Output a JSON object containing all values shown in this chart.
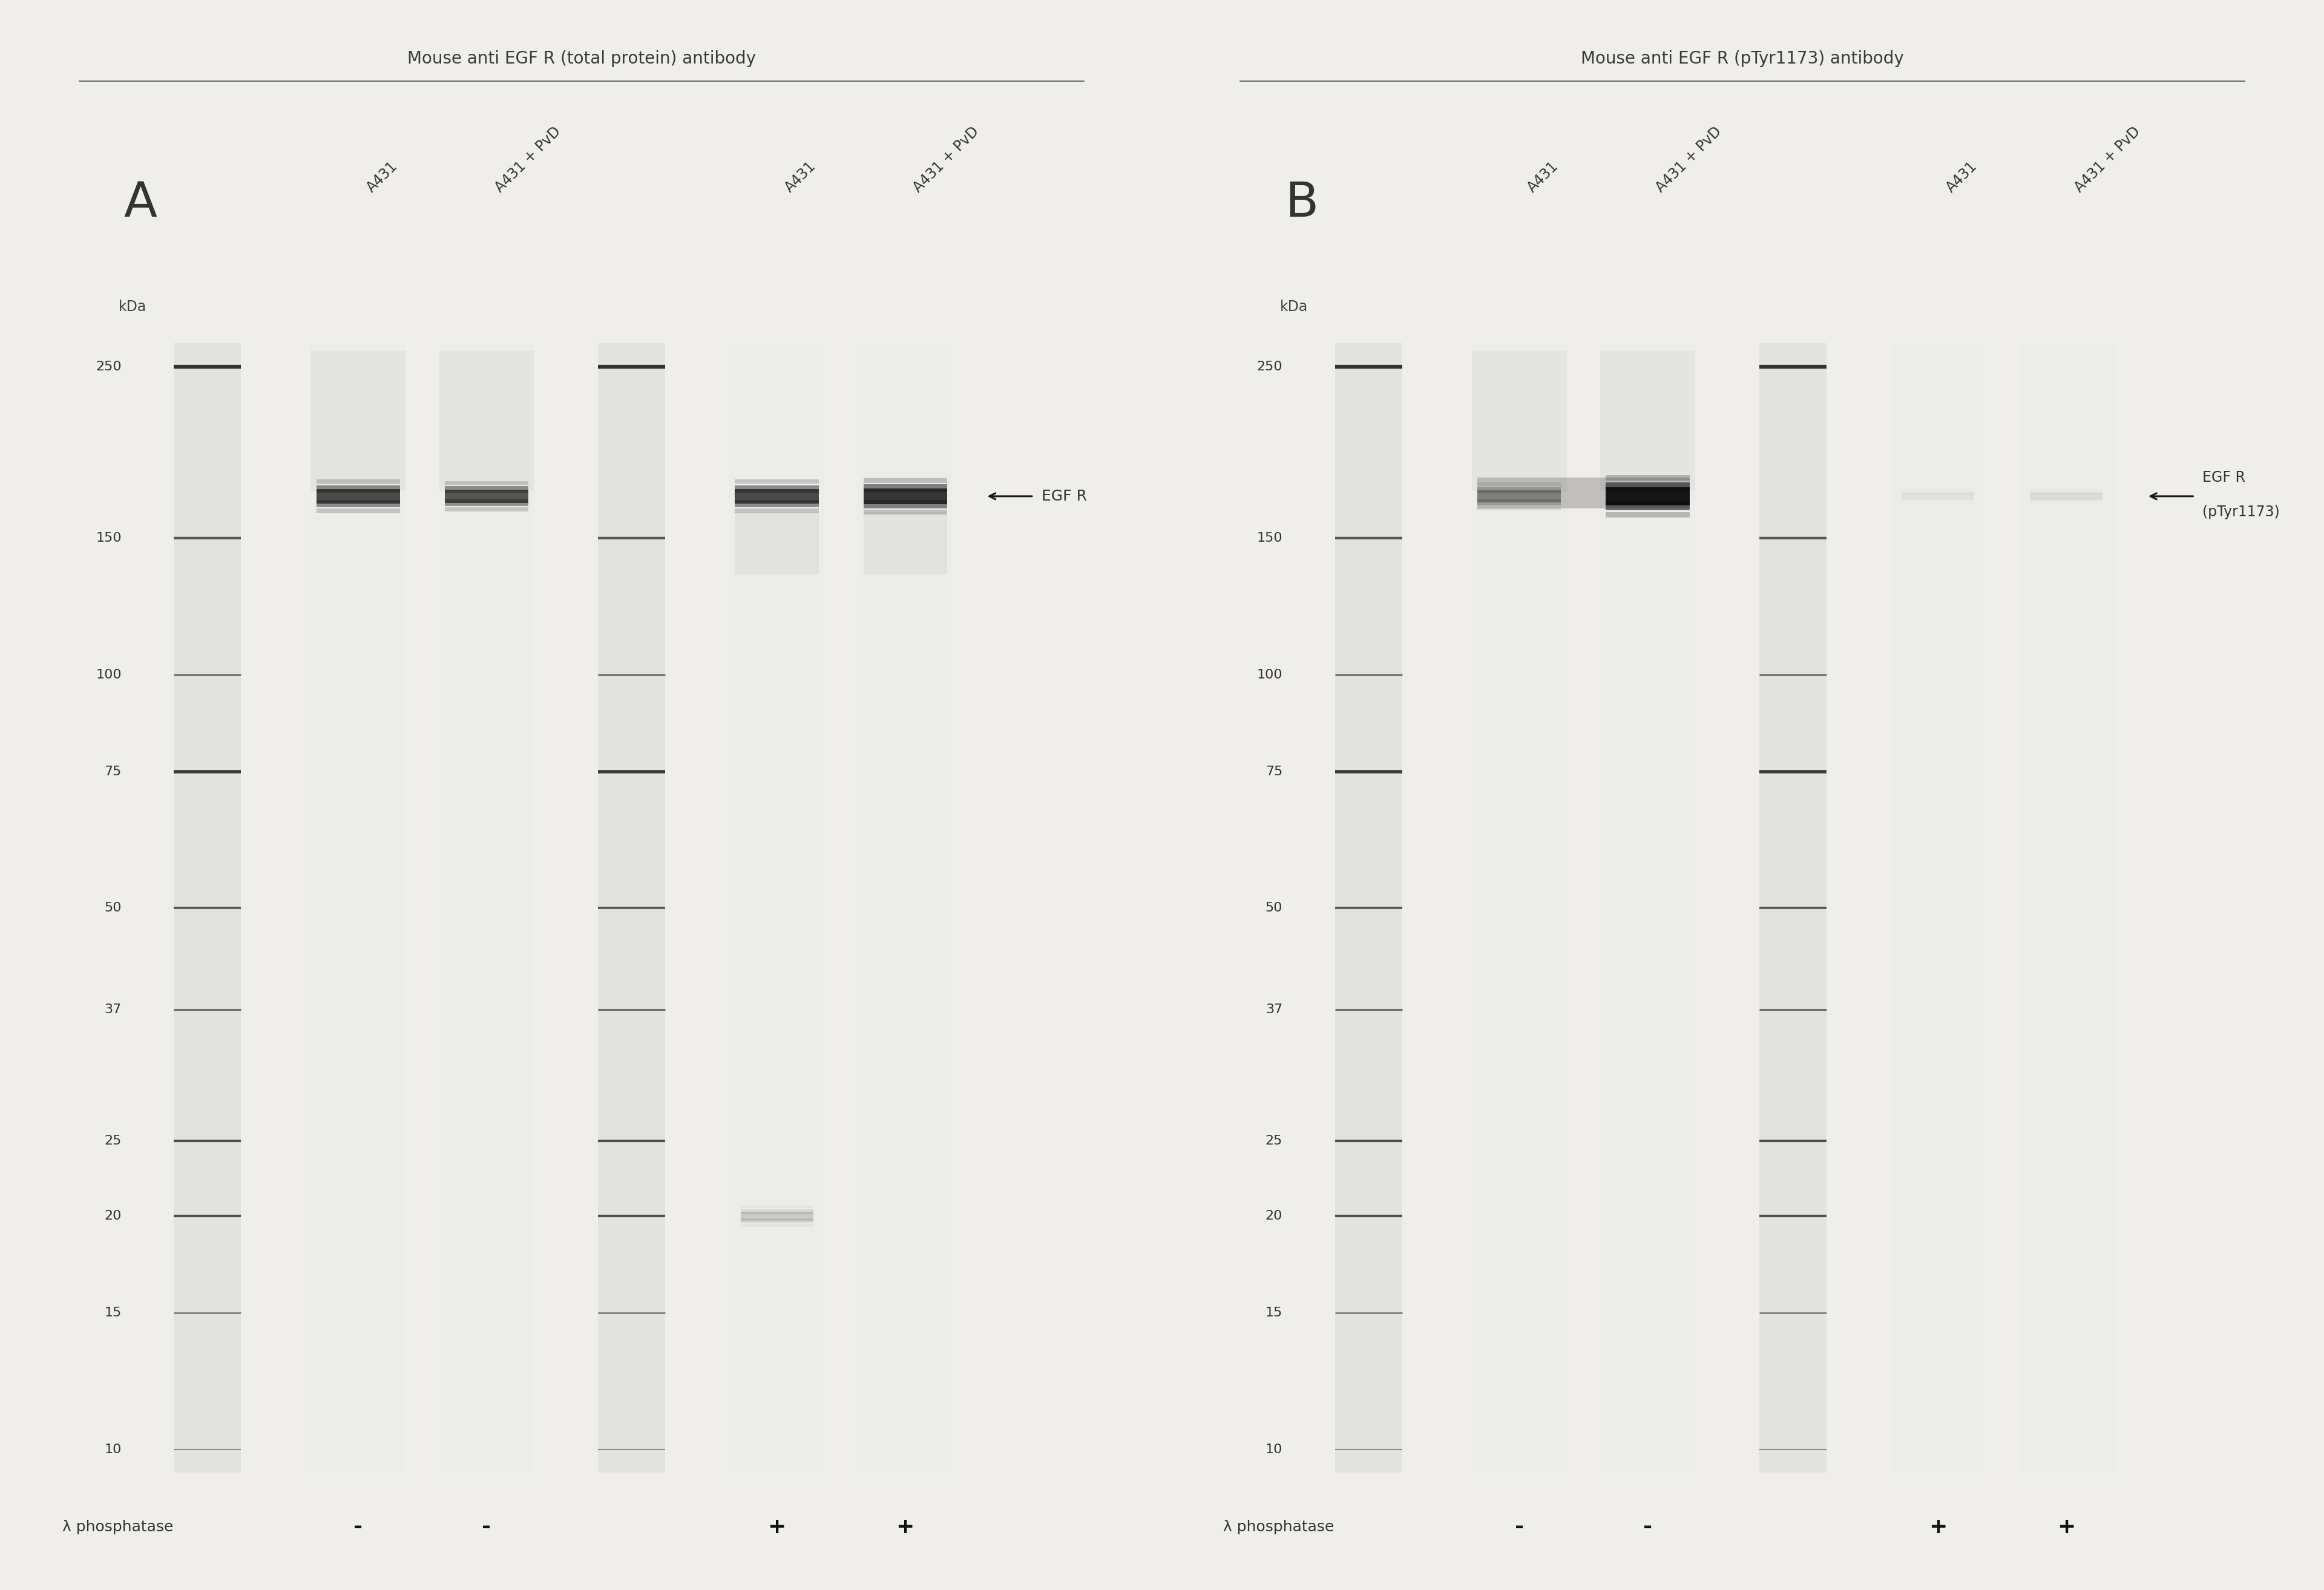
{
  "fig_width": 38.4,
  "fig_height": 26.27,
  "bg_color": "#f0eeeb",
  "title_A": "Mouse anti EGF R (total protein) antibody",
  "title_B": "Mouse anti EGF R (pTyr1173) antibody",
  "label_A": "A",
  "label_B": "B",
  "mw_markers": [
    250,
    150,
    100,
    75,
    50,
    37,
    25,
    20,
    15,
    10
  ],
  "lane_labels": [
    "A431",
    "A431 + PvD",
    "A431",
    "A431 + PvD"
  ],
  "phosphatase_label": "λ phosphatase",
  "phosphatase_signs_A": [
    "-",
    "-",
    "+",
    "+"
  ],
  "phosphatase_signs_B": [
    "-",
    "-",
    "+",
    "+"
  ],
  "annotation_A": "EGF R",
  "annotation_B_line1": "EGF R",
  "annotation_B_line2": "(pTyr1173)"
}
